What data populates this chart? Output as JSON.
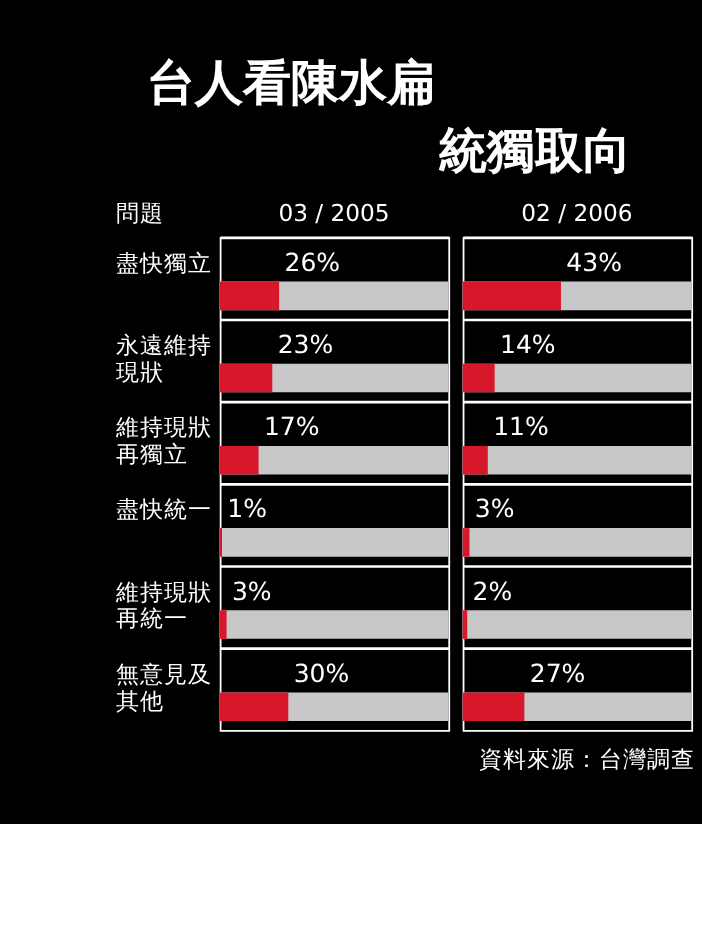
{
  "chart_data": [
    {
      "type": "bar",
      "orientation": "horizontal",
      "title": "03 / 2005",
      "ylabel": "問題",
      "categories": [
        "盡快獨立",
        "永遠維持現狀",
        "維持現狀再獨立",
        "盡快統一",
        "維持現狀再統一",
        "無意見及其他"
      ],
      "values": [
        26,
        23,
        17,
        1,
        3,
        30
      ],
      "value_labels": [
        "26%",
        "23%",
        "17%",
        "1%",
        "3%",
        "30%"
      ],
      "color": "#d7182a",
      "xlim": [
        0,
        100
      ],
      "tick_labels": "y",
      "grid": "y",
      "annotations": [
        "台人看陳水扁統獨取向",
        "資料來源：台灣調查"
      ]
    },
    {
      "type": "bar",
      "orientation": "horizontal",
      "title": "02 / 2006",
      "categories": [
        "盡快獨立",
        "永遠維持現狀",
        "維持現狀再獨立",
        "盡快統一",
        "維持現狀再統一",
        "無意見及其他"
      ],
      "values": [
        43,
        14,
        11,
        3,
        2,
        27
      ],
      "value_labels": [
        "43%",
        "14%",
        "11%",
        "3%",
        "2%",
        "27%"
      ],
      "color": "#d7182a",
      "xlim": [
        0,
        100
      ],
      "tick_labels": false,
      "grid": "y"
    }
  ]
}
